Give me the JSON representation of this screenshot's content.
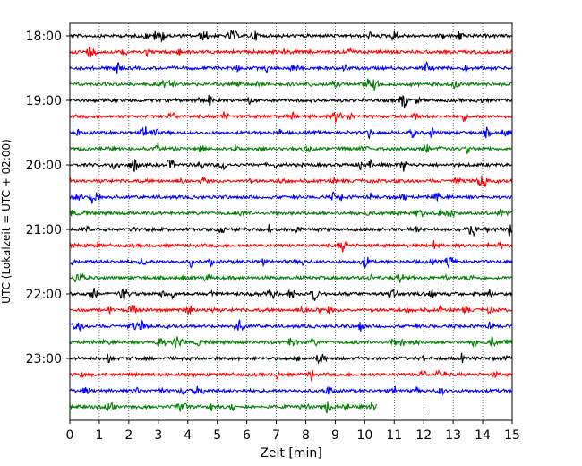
{
  "chart_data": {
    "type": "line",
    "chart_kind": "helicorder (seismogram drum plot)",
    "xlabel": "Zeit  [min]",
    "ylabel": "UTC (Lokalzeit = UTC + 02:00)",
    "xlim": [
      0,
      15
    ],
    "x_ticks": [
      "0",
      "1",
      "2",
      "3",
      "4",
      "5",
      "6",
      "7",
      "8",
      "9",
      "10",
      "11",
      "12",
      "13",
      "14",
      "15"
    ],
    "y_ticks": [
      "18:00",
      "19:00",
      "20:00",
      "21:00",
      "22:00",
      "23:00"
    ],
    "trace_start_times_utc": [
      "18:00",
      "18:15",
      "18:30",
      "18:45",
      "19:00",
      "19:15",
      "19:30",
      "19:45",
      "20:00",
      "20:15",
      "20:30",
      "20:45",
      "21:00",
      "21:15",
      "21:30",
      "21:45",
      "22:00",
      "22:15",
      "22:30",
      "22:45",
      "23:00",
      "23:15",
      "23:30",
      "23:45"
    ],
    "trace_colors_cycle": [
      "#000000",
      "#ff0000",
      "#0000ff",
      "#008000"
    ],
    "last_trace_end_min": 10.4,
    "x_grid": "dotted vertical lines at each minute",
    "legend": "none"
  }
}
